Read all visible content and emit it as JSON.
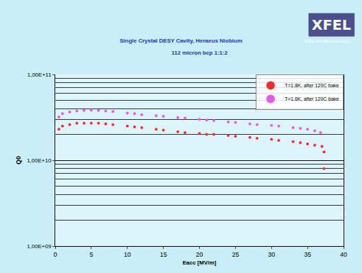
{
  "chart_data": {
    "type": "scatter",
    "title": "Single Crystal DESY Cavity, Heraeus Niobium",
    "subtitle": "112 micron bcp 1:1:2",
    "x_label": "Eacc [MV/m]",
    "y_label": "Q0",
    "annotations": [
      "XFEL",
      "X-Ray Free-Electron Laser"
    ],
    "log": "y",
    "grid": true,
    "legend": "top right",
    "marker": "circle",
    "xlim": [
      0,
      40
    ],
    "xticks": [
      0,
      5,
      10,
      15,
      20,
      25,
      30,
      35,
      40
    ],
    "ylim": [
      1000000000,
      100000000000
    ],
    "yticks": [
      {
        "value": 1000000000,
        "label": "1,00E+09"
      },
      {
        "value": 10000000000,
        "label": "1,00E+10"
      },
      {
        "value": 100000000000,
        "label": "1,00E+11"
      }
    ],
    "series": [
      {
        "name": "T=1.8K, after 120C bake",
        "color": "#ff2a2a",
        "x": [
          0.5,
          1,
          2,
          3,
          4,
          5,
          6,
          7,
          8,
          10,
          11,
          12,
          14,
          15,
          17,
          18,
          20,
          21,
          22,
          24,
          25,
          27,
          28,
          30,
          31,
          33,
          34,
          35,
          36,
          37,
          37.3,
          37.3
        ],
        "values": [
          23000000000,
          25000000000,
          26000000000,
          27000000000,
          27000000000,
          27000000000,
          27000000000,
          26500000000,
          26000000000,
          25000000000,
          24500000000,
          24000000000,
          23000000000,
          22500000000,
          21500000000,
          21000000000,
          20500000000,
          20000000000,
          20000000000,
          19500000000,
          19000000000,
          18500000000,
          18000000000,
          17500000000,
          17000000000,
          16500000000,
          16000000000,
          15500000000,
          15000000000,
          14500000000,
          12500000000,
          8000000000
        ]
      },
      {
        "name": "T=1.6K, after 120C bake",
        "color": "#ee55ee",
        "x": [
          0.5,
          1,
          2,
          3,
          4,
          5,
          6,
          7,
          8,
          10,
          11,
          12,
          14,
          15,
          17,
          18,
          20,
          21,
          22,
          24,
          25,
          27,
          28,
          30,
          31,
          33,
          34,
          35,
          36,
          36.8
        ],
        "values": [
          32000000000,
          35000000000,
          36500000000,
          37500000000,
          38000000000,
          38500000000,
          38000000000,
          37500000000,
          37000000000,
          35500000000,
          35000000000,
          34000000000,
          33000000000,
          32500000000,
          31500000000,
          31000000000,
          30000000000,
          29500000000,
          29000000000,
          28000000000,
          27500000000,
          26500000000,
          26000000000,
          25500000000,
          25000000000,
          24000000000,
          23500000000,
          23000000000,
          22000000000,
          21000000000
        ]
      }
    ]
  }
}
